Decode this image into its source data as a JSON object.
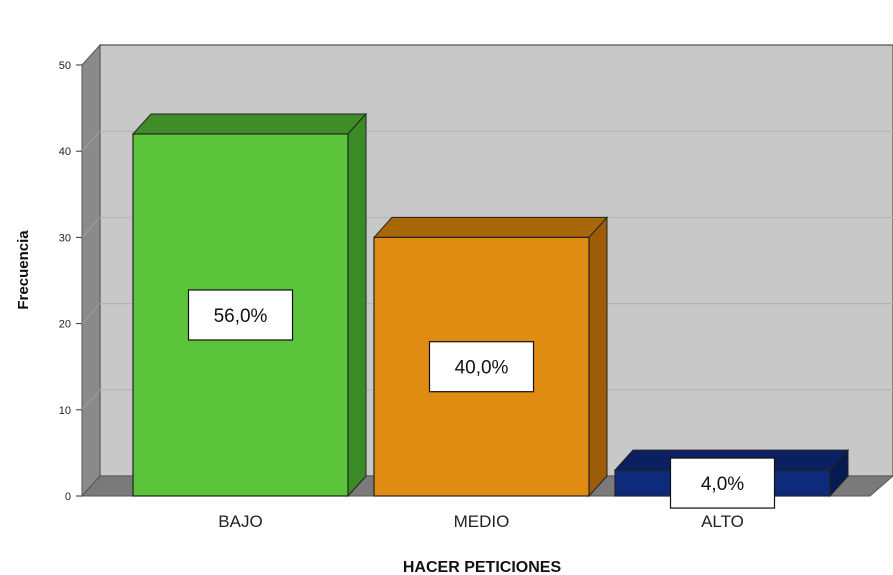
{
  "chart_data": {
    "type": "bar",
    "categories": [
      "BAJO",
      "MEDIO",
      "ALTO"
    ],
    "values": [
      42,
      30,
      3
    ],
    "data_labels": [
      "56,0%",
      "40,0%",
      "4,0%"
    ],
    "title": "",
    "xlabel": "HACER PETICIONES",
    "ylabel": "Frecuencia",
    "ylim": [
      0,
      50
    ],
    "yticks": [
      "0",
      "10",
      "20",
      "30",
      "40",
      "50"
    ],
    "grid": true,
    "style": "3d",
    "colors": {
      "bars": [
        "#5cc43b",
        "#e08b12",
        "#0e2a7a"
      ],
      "bar_sides": [
        "#3a8a25",
        "#9c5c08",
        "#061a52"
      ],
      "bar_tops": [
        "#3f8c28",
        "#a86808",
        "#0a2060"
      ],
      "plot_background": "#c8c8c8",
      "floor": "#7a7a7a",
      "gridline": "#b2b2b2"
    }
  }
}
